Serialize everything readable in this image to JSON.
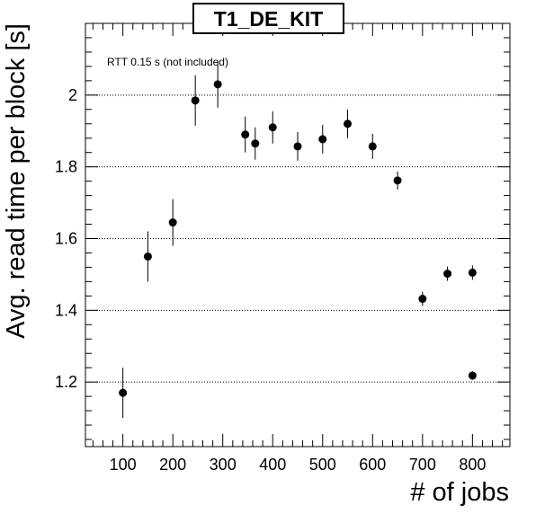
{
  "chart_data": {
    "type": "scatter",
    "title": "T1_DE_KIT",
    "xlabel": "# of jobs",
    "ylabel": "Avg. read time per block [s]",
    "annotation": "RTT 0.15 s (not included)",
    "xlim": [
      25,
      875
    ],
    "ylim": [
      1.02,
      2.2
    ],
    "x_ticks": [
      100,
      200,
      300,
      400,
      500,
      600,
      700,
      800
    ],
    "y_ticks": [
      1.2,
      1.4,
      1.6,
      1.8,
      2
    ],
    "y_tick_labels": [
      "1.2",
      "1.4",
      "1.6",
      "1.8",
      "2"
    ],
    "grid": "horizontal dotted",
    "series": [
      {
        "points": [
          {
            "x": 100,
            "y": 1.17,
            "err": 0.07
          },
          {
            "x": 150,
            "y": 1.55,
            "err": 0.07
          },
          {
            "x": 200,
            "y": 1.645,
            "err": 0.065
          },
          {
            "x": 245,
            "y": 1.985,
            "err": 0.07
          },
          {
            "x": 290,
            "y": 2.03,
            "err": 0.065
          },
          {
            "x": 345,
            "y": 1.89,
            "err": 0.05
          },
          {
            "x": 365,
            "y": 1.865,
            "err": 0.045
          },
          {
            "x": 400,
            "y": 1.91,
            "err": 0.045
          },
          {
            "x": 450,
            "y": 1.857,
            "err": 0.04
          },
          {
            "x": 500,
            "y": 1.877,
            "err": 0.04
          },
          {
            "x": 550,
            "y": 1.92,
            "err": 0.04
          },
          {
            "x": 600,
            "y": 1.857,
            "err": 0.035
          },
          {
            "x": 650,
            "y": 1.762,
            "err": 0.025
          },
          {
            "x": 700,
            "y": 1.432,
            "err": 0.02
          },
          {
            "x": 750,
            "y": 1.502,
            "err": 0.02
          },
          {
            "x": 800,
            "y": 1.505,
            "err": 0.02
          },
          {
            "x": 800,
            "y": 1.218,
            "err": 0.012
          }
        ]
      }
    ]
  }
}
